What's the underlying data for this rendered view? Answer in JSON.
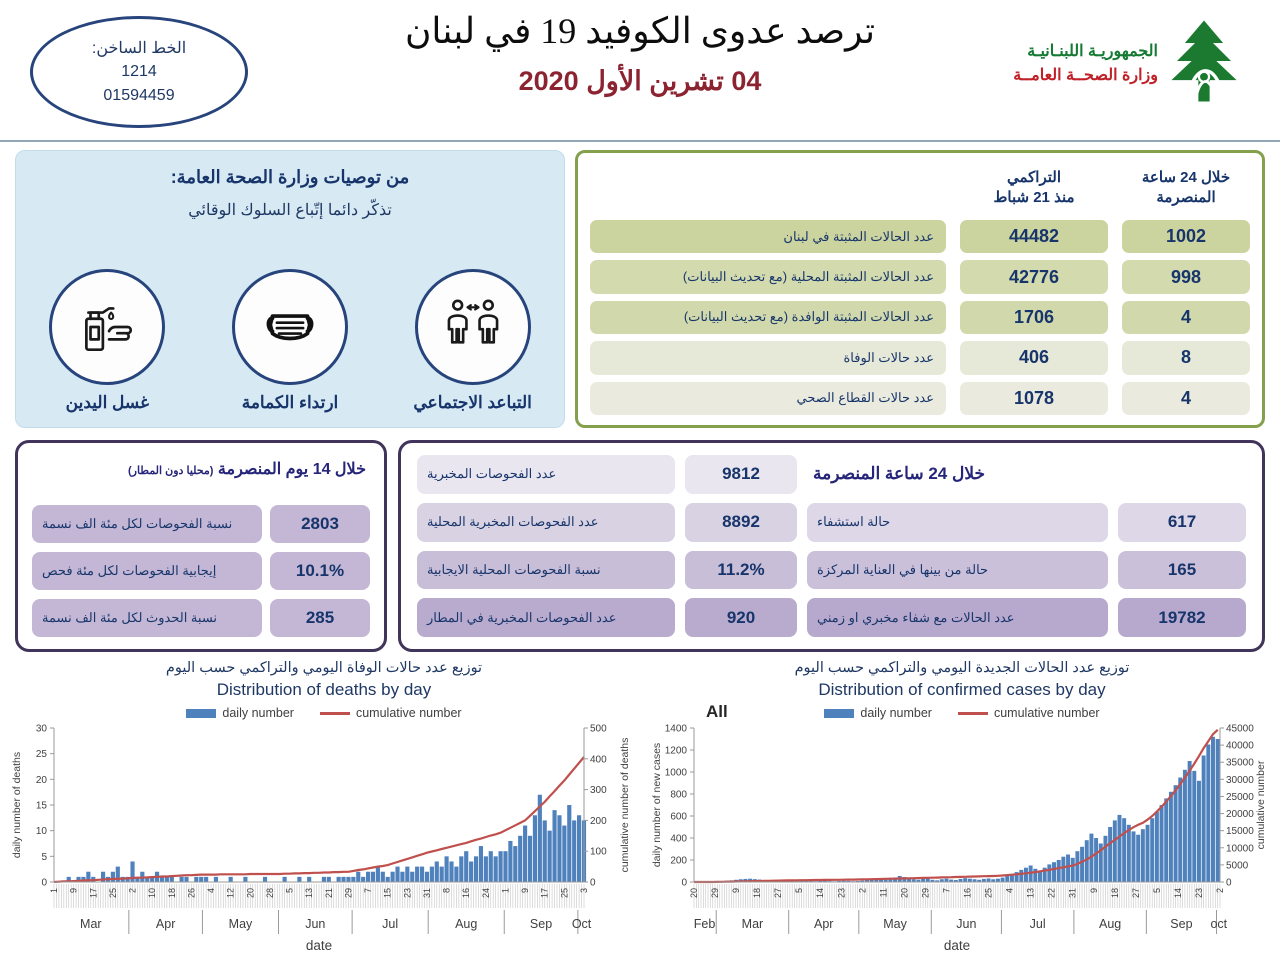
{
  "header": {
    "hotline": {
      "label": "الخط الساخن:",
      "number1": "1214",
      "number2": "01594459"
    },
    "title": "ترصد عدوى الكوفيد 19 في لبنان",
    "date": "04 تشرين الأول 2020",
    "ministry": {
      "line1": "الجمهوريـة اللبنـانيـة",
      "line2": "وزارة الصحــة العامــة"
    }
  },
  "recommendations": {
    "title": "من توصيات وزارة الصحة العامة:",
    "subtitle": "تذكّر دائما إتّباع السلوك الوقائي",
    "items": [
      {
        "icon": "hand-wash-icon",
        "label": "غسل اليدين"
      },
      {
        "icon": "face-mask-icon",
        "label": "ارتداء الكمامة"
      },
      {
        "icon": "social-distance-icon",
        "label": "التباعد الاجتماعي"
      }
    ]
  },
  "stats_table": {
    "col_24h_line1": "خلال 24 ساعة",
    "col_24h_line2": "المنصرمة",
    "col_cum_line1": "التراكمي",
    "col_cum_line2": "منذ 21 شباط",
    "rows": [
      {
        "label": "عدد الحالات المثبتة في لبنان",
        "cumulative": "44482",
        "last24h": "1002"
      },
      {
        "label": "عدد الحالات المثبتة المحلية (مع تحديث البيانات)",
        "cumulative": "42776",
        "last24h": "998"
      },
      {
        "label": "عدد الحالات المثبتة الوافدة (مع تحديث البيانات)",
        "cumulative": "1706",
        "last24h": "4"
      },
      {
        "label": "عدد حالات الوفاة",
        "cumulative": "406",
        "last24h": "8"
      },
      {
        "label": "عدد حالات القطاع الصحي",
        "cumulative": "1078",
        "last24h": "4"
      }
    ]
  },
  "fourteen_day": {
    "title": "خلال 14 يوم المنصرمة",
    "title_note": "(محليا دون المطار)",
    "rows": [
      {
        "label": "نسبة الفحوصات لكل مئة الف نسمة",
        "value": "2803"
      },
      {
        "label": "إيجابية الفحوصات لكل مئة فحص",
        "value": "10.1%"
      },
      {
        "label": "نسبة الحدوث لكل مئة الف نسمة",
        "value": "285"
      }
    ]
  },
  "last24h_panel": {
    "title": "خلال 24 ساعة المنصرمة",
    "left_rows": [
      {
        "label": "عدد الفحوصات المخبرية",
        "value": "9812"
      },
      {
        "label": "عدد الفحوصات المخبرية المحلية",
        "value": "8892"
      },
      {
        "label": "نسبة الفحوصات المحلية الايجابية",
        "value": "11.2%"
      },
      {
        "label": "عدد الفحوصات المخبرية في المطار",
        "value": "920"
      }
    ],
    "right_rows": [
      {
        "label": "حالة استشفاء",
        "value": "617"
      },
      {
        "label": "حالة من بينها في العناية المركزة",
        "value": "165"
      },
      {
        "label": "عدد الحالات مع شفاء مخبري او زمني",
        "value": "19782"
      }
    ]
  },
  "chart_data": [
    {
      "type": "bar+line",
      "title_ar": "توزيع عدد حالات الوفاة اليومي والتراكمي حسب اليوم",
      "title_en": "Distribution of deaths by day",
      "legend": [
        "daily number",
        "cumulative number"
      ],
      "ylabel_left": "daily number of deaths",
      "ylabel_right": "cumulative number of deaths",
      "xlabel": "date",
      "ylim_left": [
        0,
        30
      ],
      "ytick_left": 5,
      "ylim_right": [
        0,
        500
      ],
      "ytick_right": 100,
      "bar_color": "#4f81bd",
      "line_color": "#c0504d",
      "x_start": "Mar 1",
      "x_end": "Oct 3",
      "total_days": 217,
      "sample_interval_days": 2,
      "day_ticks": {
        "labels": [
          "1",
          "9",
          "17",
          "25",
          "2",
          "10",
          "18",
          "26",
          "4",
          "12",
          "20",
          "28",
          "5",
          "13",
          "21",
          "29",
          "7",
          "15",
          "23",
          "31",
          "8",
          "16",
          "24",
          "1",
          "9",
          "17",
          "25",
          "3"
        ],
        "positions": [
          0,
          8,
          16,
          24,
          32,
          40,
          48,
          56,
          64,
          72,
          80,
          88,
          96,
          104,
          112,
          120,
          128,
          136,
          144,
          152,
          160,
          168,
          176,
          184,
          192,
          200,
          208,
          216
        ]
      },
      "months": [
        {
          "label": "Mar",
          "start": 0,
          "end": 30
        },
        {
          "label": "Apr",
          "start": 31,
          "end": 60
        },
        {
          "label": "May",
          "start": 61,
          "end": 91
        },
        {
          "label": "Jun",
          "start": 92,
          "end": 121
        },
        {
          "label": "Jul",
          "start": 122,
          "end": 152
        },
        {
          "label": "Aug",
          "start": 153,
          "end": 183
        },
        {
          "label": "Sep",
          "start": 184,
          "end": 213
        },
        {
          "label": "Oct",
          "start": 214,
          "end": 216
        }
      ],
      "daily": [
        0,
        0,
        0,
        1,
        0,
        1,
        1,
        2,
        1,
        0,
        2,
        1,
        2,
        3,
        1,
        1,
        4,
        1,
        2,
        1,
        1,
        2,
        1,
        1,
        1,
        0,
        1,
        1,
        0,
        1,
        1,
        1,
        0,
        1,
        0,
        0,
        1,
        0,
        0,
        1,
        0,
        0,
        0,
        1,
        0,
        0,
        0,
        1,
        0,
        0,
        1,
        0,
        1,
        0,
        0,
        1,
        1,
        0,
        1,
        1,
        1,
        1,
        2,
        1,
        2,
        2,
        3,
        2,
        1,
        2,
        3,
        2,
        3,
        2,
        3,
        3,
        2,
        3,
        4,
        3,
        5,
        4,
        3,
        5,
        6,
        4,
        5,
        7,
        5,
        6,
        5,
        6,
        6,
        8,
        7,
        9,
        11,
        9,
        13,
        17,
        12,
        10,
        14,
        13,
        11,
        15,
        12,
        13,
        12
      ],
      "cumulative": [
        0,
        1,
        2,
        2,
        3,
        4,
        5,
        6,
        6,
        7,
        8,
        9,
        10,
        10,
        11,
        12,
        13,
        14,
        14,
        15,
        16,
        17,
        18,
        18,
        19,
        20,
        21,
        22,
        22,
        23,
        24,
        24,
        24,
        24,
        25,
        25,
        25,
        25,
        25,
        25,
        26,
        26,
        26,
        26,
        26,
        26,
        26,
        27,
        27,
        28,
        28,
        29,
        29,
        30,
        30,
        31,
        31,
        32,
        32,
        33,
        33,
        36,
        39,
        41,
        44,
        47,
        50,
        52,
        55,
        60,
        65,
        70,
        75,
        80,
        85,
        90,
        95,
        99,
        103,
        107,
        111,
        115,
        119,
        123,
        127,
        132,
        137,
        141,
        146,
        151,
        155,
        160,
        168,
        176,
        184,
        192,
        200,
        215,
        230,
        245,
        260,
        278,
        295,
        313,
        330,
        349,
        368,
        387,
        406
      ]
    },
    {
      "type": "bar+line",
      "title_ar": "توزيع عدد الحالات الجديدة اليومي والتراكمي حسب اليوم",
      "title_en": "Distribution of confirmed cases by day",
      "annotation": "All",
      "legend": [
        "daily number",
        "cumulative number"
      ],
      "ylabel_left": "daily number of new cases",
      "ylabel_right": "cumulative number",
      "xlabel": "date",
      "ylim_left": [
        0,
        1400
      ],
      "ytick_left": 200,
      "ylim_right": [
        0,
        45000
      ],
      "ytick_right": 5000,
      "bar_color": "#4f81bd",
      "line_color": "#c0504d",
      "x_start": "Feb 20",
      "x_end": "Oct 2",
      "total_days": 226,
      "sample_interval_days": 2,
      "day_ticks": {
        "labels": [
          "20",
          "29",
          "9",
          "18",
          "27",
          "5",
          "14",
          "23",
          "2",
          "11",
          "20",
          "29",
          "7",
          "16",
          "25",
          "4",
          "13",
          "22",
          "31",
          "9",
          "18",
          "27",
          "5",
          "14",
          "23",
          "2"
        ],
        "positions": [
          0,
          9,
          18,
          27,
          36,
          45,
          54,
          63,
          72,
          81,
          90,
          99,
          108,
          117,
          126,
          135,
          144,
          153,
          162,
          171,
          180,
          189,
          198,
          207,
          216,
          225
        ]
      },
      "months": [
        {
          "label": "Feb",
          "start": 0,
          "end": 9
        },
        {
          "label": "Mar",
          "start": 10,
          "end": 40
        },
        {
          "label": "Apr",
          "start": 41,
          "end": 70
        },
        {
          "label": "May",
          "start": 71,
          "end": 101
        },
        {
          "label": "Jun",
          "start": 102,
          "end": 131
        },
        {
          "label": "Jul",
          "start": 132,
          "end": 162
        },
        {
          "label": "Aug",
          "start": 163,
          "end": 193
        },
        {
          "label": "Sep",
          "start": 194,
          "end": 223
        },
        {
          "label": "oct",
          "start": 224,
          "end": 225
        }
      ],
      "daily": [
        1,
        2,
        2,
        3,
        4,
        5,
        8,
        12,
        15,
        20,
        25,
        28,
        30,
        26,
        22,
        18,
        15,
        12,
        10,
        12,
        14,
        10,
        8,
        12,
        15,
        9,
        7,
        11,
        13,
        8,
        6,
        9,
        12,
        10,
        7,
        9,
        12,
        18,
        25,
        35,
        30,
        22,
        28,
        40,
        55,
        45,
        30,
        25,
        20,
        28,
        35,
        20,
        15,
        25,
        30,
        22,
        18,
        28,
        35,
        30,
        25,
        20,
        28,
        32,
        25,
        30,
        40,
        55,
        70,
        90,
        110,
        130,
        150,
        120,
        100,
        130,
        160,
        180,
        200,
        230,
        250,
        220,
        280,
        320,
        380,
        440,
        400,
        350,
        420,
        500,
        560,
        610,
        580,
        520,
        460,
        430,
        480,
        520,
        580,
        640,
        700,
        760,
        820,
        880,
        950,
        1020,
        1100,
        1010,
        920,
        1150,
        1250,
        1320,
        1300
      ],
      "cumulative": [
        2,
        3,
        4,
        5,
        7,
        36,
        65,
        94,
        123,
        152,
        181,
        210,
        239,
        268,
        297,
        326,
        355,
        384,
        413,
        442,
        470,
        487,
        504,
        521,
        538,
        555,
        572,
        589,
        606,
        623,
        640,
        657,
        674,
        691,
        708,
        725,
        758,
        791,
        824,
        857,
        890,
        923,
        956,
        989,
        1022,
        1055,
        1088,
        1121,
        1154,
        1187,
        1220,
        1259,
        1298,
        1336,
        1375,
        1414,
        1452,
        1491,
        1530,
        1568,
        1607,
        1646,
        1684,
        1723,
        1762,
        1800,
        1900,
        2010,
        2130,
        2260,
        2400,
        2550,
        2720,
        2900,
        3100,
        3320,
        3560,
        3800,
        4050,
        4300,
        4550,
        4800,
        5300,
        5900,
        6600,
        7400,
        8300,
        9300,
        10300,
        11300,
        12300,
        13300,
        14300,
        15200,
        16000,
        16700,
        17300,
        18200,
        19300,
        20600,
        22000,
        23500,
        25100,
        26800,
        28600,
        30500,
        32500,
        34600,
        36800,
        39100,
        41100,
        43200,
        44482
      ]
    }
  ]
}
